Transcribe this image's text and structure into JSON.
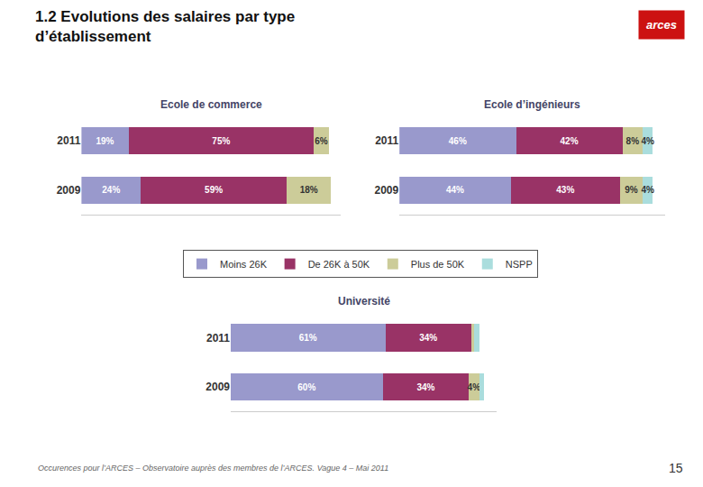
{
  "title": "1.2 Evolutions des salaires par type\nd’établissement",
  "annotations": [
    "Occurences pour l’ARCES – Observatoire auprès des membres de l’ARCES. Vague 4 – Mai 2011",
    "15",
    "arces"
  ],
  "chart_data": [
    {
      "type": "bar",
      "orientation": "horizontal",
      "stacked": true,
      "title": "Ecole de commerce",
      "categories": [
        "2011",
        "2009"
      ],
      "series": [
        {
          "name": "Moins 26K",
          "color": "#9999cc",
          "values": [
            19,
            24
          ],
          "value_labels": [
            "19%",
            "24%"
          ]
        },
        {
          "name": "De 26K à 50K",
          "color": "#993366",
          "values": [
            75,
            59
          ],
          "value_labels": [
            "75%",
            "59%"
          ]
        },
        {
          "name": "Plus de 50K",
          "color": "#cccc99",
          "values": [
            6,
            18
          ],
          "value_labels": [
            "6%",
            "18%"
          ]
        },
        {
          "name": "NSPP",
          "color": "#aadddd",
          "values": [
            0,
            0
          ],
          "value_labels": [
            null,
            null
          ]
        }
      ],
      "xlim": [
        0,
        105
      ],
      "tick_labels": "y",
      "grid": false,
      "data_labels": true,
      "legend": "center"
    },
    {
      "type": "bar",
      "orientation": "horizontal",
      "stacked": true,
      "title": "Ecole d’ingénieurs",
      "categories": [
        "2011",
        "2009"
      ],
      "series": [
        {
          "name": "Moins 26K",
          "color": "#9999cc",
          "values": [
            46,
            44
          ],
          "value_labels": [
            "46%",
            "44%"
          ]
        },
        {
          "name": "De 26K à 50K",
          "color": "#993366",
          "values": [
            42,
            43
          ],
          "value_labels": [
            "42%",
            "43%"
          ]
        },
        {
          "name": "Plus de 50K",
          "color": "#cccc99",
          "values": [
            8,
            9
          ],
          "value_labels": [
            "8%",
            "9%"
          ]
        },
        {
          "name": "NSPP",
          "color": "#aadddd",
          "values": [
            4,
            4
          ],
          "value_labels": [
            "4%",
            "4%"
          ]
        }
      ],
      "xlim": [
        0,
        105
      ],
      "tick_labels": "y",
      "grid": false,
      "data_labels": true,
      "legend": "center"
    },
    {
      "type": "bar",
      "orientation": "horizontal",
      "stacked": true,
      "title": "Université",
      "categories": [
        "2011",
        "2009"
      ],
      "series": [
        {
          "name": "Moins 26K",
          "color": "#9999cc",
          "values": [
            61,
            60
          ],
          "value_labels": [
            "61%",
            "60%"
          ]
        },
        {
          "name": "De 26K à 50K",
          "color": "#993366",
          "values": [
            34,
            34
          ],
          "value_labels": [
            "34%",
            "34%"
          ]
        },
        {
          "name": "Plus de 50K",
          "color": "#cccc99",
          "values": [
            1,
            4
          ],
          "value_labels": [
            null,
            "4%"
          ]
        },
        {
          "name": "NSPP",
          "color": "#aadddd",
          "values": [
            2,
            2
          ],
          "value_labels": [
            null,
            null
          ]
        }
      ],
      "xlim": [
        0,
        105
      ],
      "tick_labels": "y",
      "grid": false,
      "data_labels": true,
      "legend": "center"
    }
  ]
}
